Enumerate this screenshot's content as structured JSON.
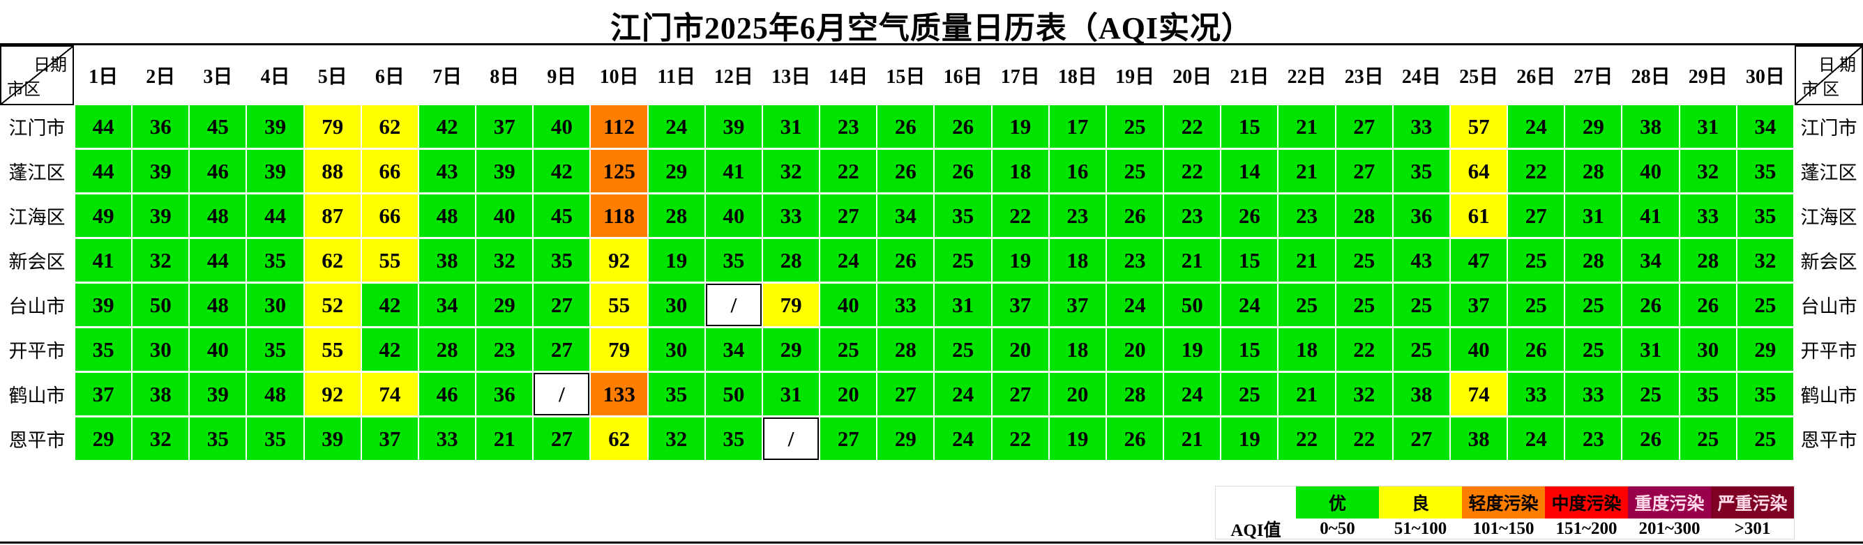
{
  "chart_data": {
    "type": "heatmap",
    "title": "江门市2025年6月空气质量日历表（AQI实况）",
    "corner": {
      "left": {
        "top": "日期",
        "bottom": "市区"
      },
      "right": {
        "top": "日 期",
        "bottom": "市 区"
      }
    },
    "columns": [
      "1日",
      "2日",
      "3日",
      "4日",
      "5日",
      "6日",
      "7日",
      "8日",
      "9日",
      "10日",
      "11日",
      "12日",
      "13日",
      "14日",
      "15日",
      "16日",
      "17日",
      "18日",
      "19日",
      "20日",
      "21日",
      "22日",
      "23日",
      "24日",
      "25日",
      "26日",
      "27日",
      "28日",
      "29日",
      "30日"
    ],
    "series": [
      {
        "name": "江门市",
        "values": [
          44,
          36,
          45,
          39,
          79,
          62,
          42,
          37,
          40,
          112,
          24,
          39,
          31,
          23,
          26,
          26,
          19,
          17,
          25,
          22,
          15,
          21,
          27,
          33,
          57,
          24,
          29,
          38,
          31,
          34
        ]
      },
      {
        "name": "蓬江区",
        "values": [
          44,
          39,
          46,
          39,
          88,
          66,
          43,
          39,
          42,
          125,
          29,
          41,
          32,
          22,
          26,
          26,
          18,
          16,
          25,
          22,
          14,
          21,
          27,
          35,
          64,
          22,
          28,
          40,
          32,
          35
        ]
      },
      {
        "name": "江海区",
        "values": [
          49,
          39,
          48,
          44,
          87,
          66,
          48,
          40,
          45,
          118,
          28,
          40,
          33,
          27,
          34,
          35,
          22,
          23,
          26,
          23,
          26,
          23,
          28,
          36,
          61,
          27,
          31,
          41,
          33,
          35
        ]
      },
      {
        "name": "新会区",
        "values": [
          41,
          32,
          44,
          35,
          62,
          55,
          38,
          32,
          35,
          92,
          19,
          35,
          28,
          24,
          26,
          25,
          19,
          18,
          23,
          21,
          15,
          21,
          25,
          43,
          47,
          25,
          28,
          34,
          28,
          32
        ]
      },
      {
        "name": "台山市",
        "values": [
          39,
          50,
          48,
          30,
          52,
          42,
          34,
          29,
          27,
          55,
          30,
          "/",
          79,
          40,
          33,
          31,
          37,
          37,
          24,
          50,
          24,
          25,
          25,
          25,
          37,
          25,
          25,
          26,
          26,
          25
        ]
      },
      {
        "name": "开平市",
        "values": [
          35,
          30,
          40,
          35,
          55,
          42,
          28,
          23,
          27,
          79,
          30,
          34,
          29,
          25,
          28,
          25,
          20,
          18,
          20,
          19,
          15,
          18,
          22,
          25,
          40,
          26,
          25,
          31,
          30,
          29
        ]
      },
      {
        "name": "鹤山市",
        "values": [
          37,
          38,
          39,
          48,
          92,
          74,
          46,
          36,
          "/",
          133,
          35,
          50,
          31,
          20,
          27,
          24,
          27,
          20,
          28,
          24,
          25,
          21,
          32,
          38,
          74,
          33,
          33,
          25,
          35,
          35
        ]
      },
      {
        "name": "恩平市",
        "values": [
          29,
          32,
          35,
          35,
          39,
          37,
          33,
          21,
          27,
          62,
          32,
          35,
          "/",
          27,
          29,
          24,
          22,
          19,
          26,
          21,
          19,
          22,
          22,
          27,
          38,
          24,
          23,
          26,
          25,
          25
        ]
      }
    ],
    "missing_marker": "/",
    "value_colors": {
      "good": "#00E400",
      "moderate": "#FFFF00",
      "light_pollution": "#FF7E00",
      "medium_pollution": "#FF0000",
      "heavy_pollution": "#99004C",
      "severe_pollution": "#7E0023",
      "missing": "#FFFFFF"
    },
    "legend": {
      "aqi_label": "AQI值",
      "position": "bottom-right",
      "categories": [
        {
          "name": "优",
          "range": "0~50",
          "color": "#00E400",
          "text_color": "#000000"
        },
        {
          "name": "良",
          "range": "51~100",
          "color": "#FFFF00",
          "text_color": "#000000"
        },
        {
          "name": "轻度污染",
          "range": "101~150",
          "color": "#FF7E00",
          "text_color": "#000000"
        },
        {
          "name": "中度污染",
          "range": "151~200",
          "color": "#FF0000",
          "text_color": "#000000"
        },
        {
          "name": "重度污染",
          "range": "201~300",
          "color": "#99004C",
          "text_color": "#FFD9E8"
        },
        {
          "name": "严重污染",
          "range": ">301",
          "color": "#7E0023",
          "text_color": "#FFD9E8"
        }
      ],
      "thresholds": [
        50,
        100,
        150,
        200,
        300
      ]
    },
    "grid": true
  }
}
